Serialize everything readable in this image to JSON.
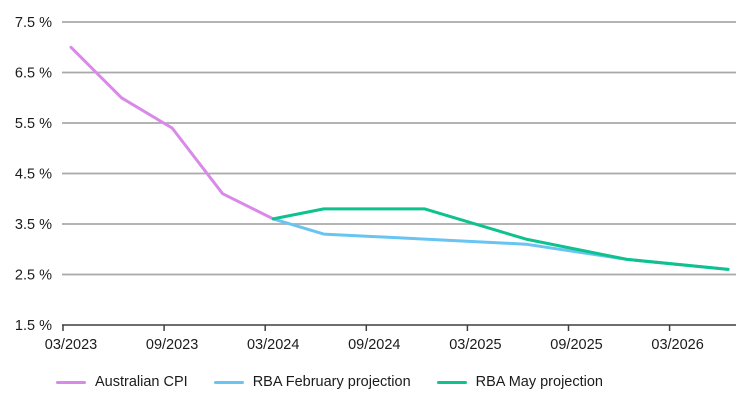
{
  "chart_data": {
    "type": "line",
    "title": "",
    "ylim": [
      1.5,
      7.5
    ],
    "y_tick_labels": [
      "7.5 %",
      "6.5 %",
      "5.5 %",
      "4.5 %",
      "3.5 %",
      "2.5 %",
      "1.5 %"
    ],
    "y_tick_values": [
      7.5,
      6.5,
      5.5,
      4.5,
      3.5,
      2.5,
      1.5
    ],
    "x_tick_labels": [
      "03/2023",
      "09/2023",
      "03/2024",
      "09/2024",
      "03/2025",
      "09/2025",
      "03/2026"
    ],
    "grid": "horizontal",
    "legend_position": "bottom",
    "colors": {
      "grid": "#a9a9a9",
      "axis": "#3f3f3f",
      "label": "#1b1b1b"
    },
    "series": [
      {
        "name": "Australian CPI",
        "color": "#d98ae8",
        "points": [
          {
            "date": "03/2023",
            "value": 7.0
          },
          {
            "date": "06/2023",
            "value": 6.0
          },
          {
            "date": "09/2023",
            "value": 5.4
          },
          {
            "date": "12/2023",
            "value": 4.1
          },
          {
            "date": "03/2024",
            "value": 3.6
          }
        ]
      },
      {
        "name": "RBA February projection",
        "color": "#68c4f1",
        "points": [
          {
            "date": "03/2024",
            "value": 3.6
          },
          {
            "date": "06/2024",
            "value": 3.3
          },
          {
            "date": "12/2024",
            "value": 3.2
          },
          {
            "date": "06/2025",
            "value": 3.1
          },
          {
            "date": "12/2025",
            "value": 2.8
          },
          {
            "date": "06/2026",
            "value": 2.6
          }
        ]
      },
      {
        "name": "RBA May projection",
        "color": "#0ec28e",
        "points": [
          {
            "date": "03/2024",
            "value": 3.6
          },
          {
            "date": "06/2024",
            "value": 3.8
          },
          {
            "date": "12/2024",
            "value": 3.8
          },
          {
            "date": "06/2025",
            "value": 3.2
          },
          {
            "date": "12/2025",
            "value": 2.8
          },
          {
            "date": "06/2026",
            "value": 2.6
          }
        ]
      }
    ]
  }
}
